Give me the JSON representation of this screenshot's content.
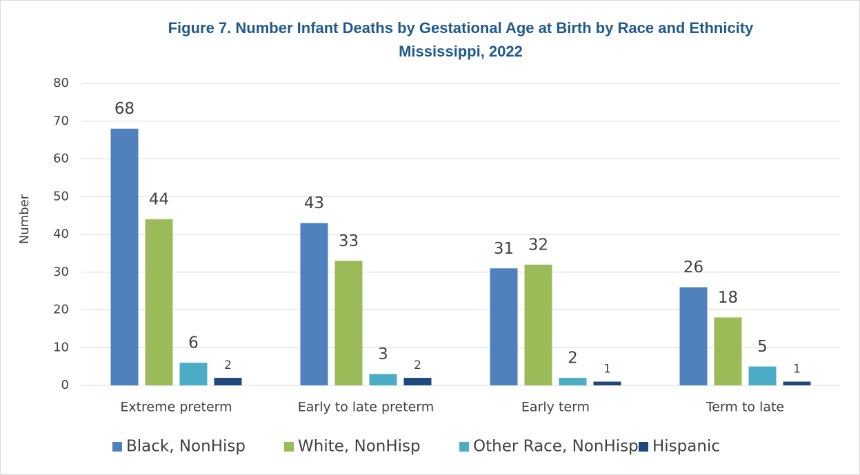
{
  "chart_data": {
    "type": "bar",
    "title": "Figure 7. Number Infant Deaths by Gestational Age at Birth by Race and Ethnicity",
    "subtitle": "Mississippi, 2022",
    "y_label": "Number",
    "categories": [
      "Extreme preterm",
      "Early to late preterm",
      "Early term",
      "Term to late"
    ],
    "series": [
      {
        "name": "Black, NonHisp",
        "color": "#4f81bd",
        "values": [
          68,
          43,
          31,
          26
        ]
      },
      {
        "name": "White, NonHisp",
        "color": "#9bbb59",
        "values": [
          44,
          33,
          32,
          18
        ]
      },
      {
        "name": "Other Race, NonHisp",
        "color": "#4bacc6",
        "values": [
          6,
          3,
          2,
          5
        ]
      },
      {
        "name": "Hispanic",
        "color": "#1f497d",
        "values": [
          2,
          2,
          1,
          1
        ]
      }
    ],
    "ylim": [
      0,
      80
    ],
    "yticks": [
      0,
      10,
      20,
      30,
      40,
      50,
      60,
      70,
      80
    ],
    "grid": true,
    "legend": "bottom"
  }
}
